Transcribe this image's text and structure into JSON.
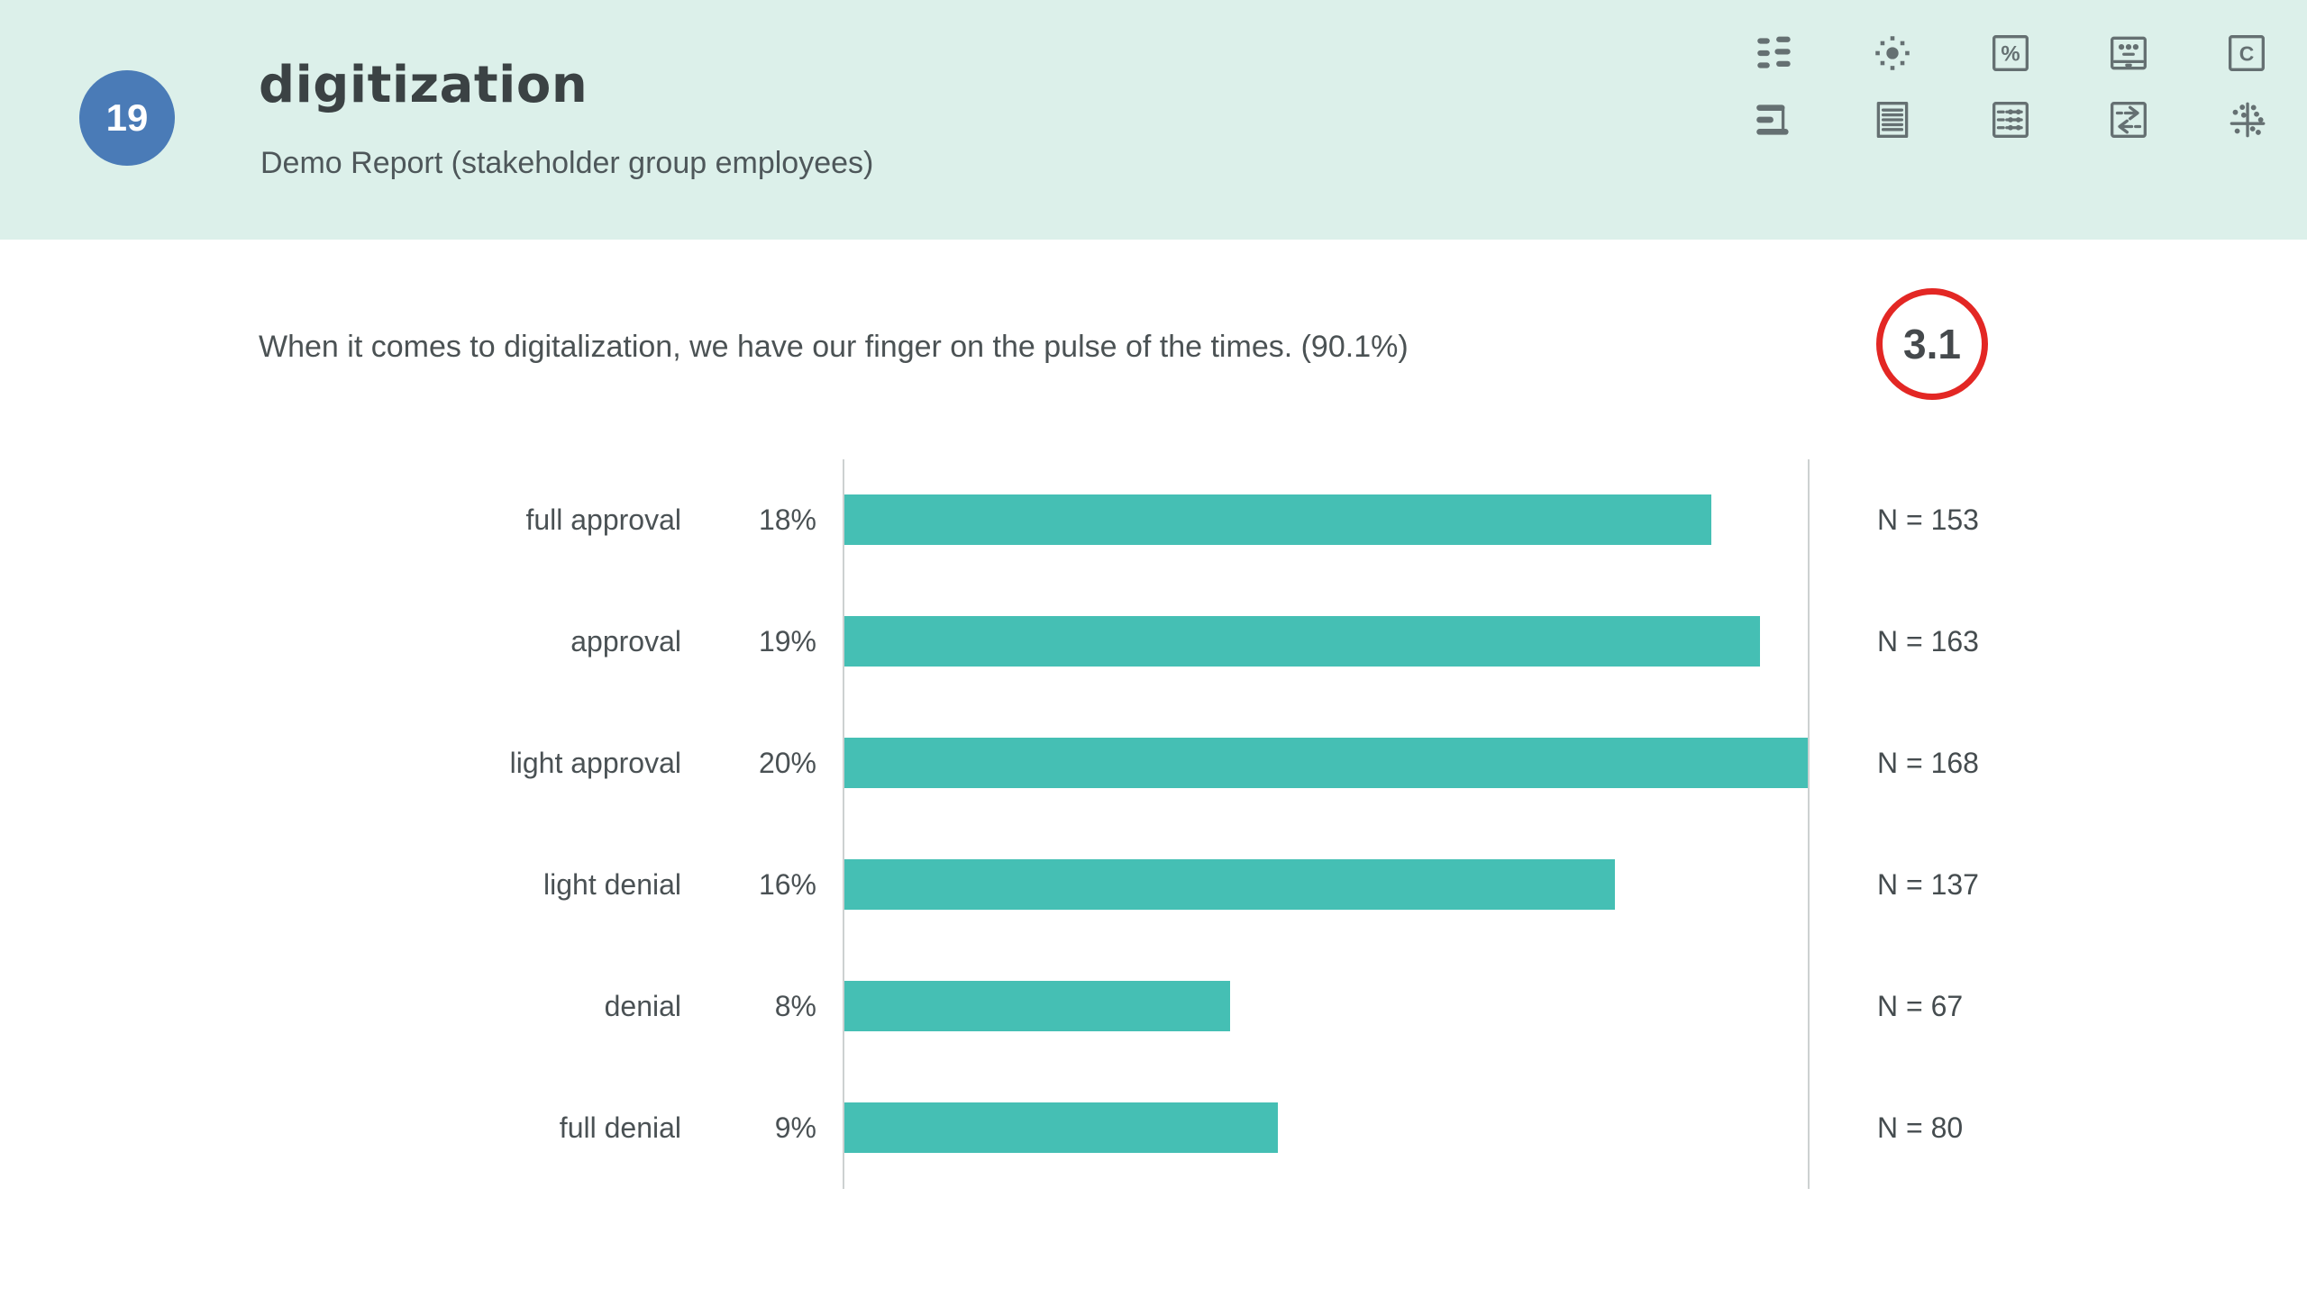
{
  "header": {
    "page_badge": "19",
    "title": "digitization",
    "subtitle": "Demo Report (stakeholder group employees)",
    "toolbar_glyphs": {
      "percent": "%",
      "letter_c": "C"
    },
    "toolbar_icons": [
      "dash-grid",
      "sun",
      "percent-box",
      "presentation",
      "letter-c",
      "horizontal-bar-chart",
      "text-document",
      "matrix-table",
      "swap-arrows",
      "scatter-plot"
    ]
  },
  "question": {
    "text": "When it comes to digitalization, we have our finger on the pulse of the times. (90.1%)",
    "score_badge": "3.1"
  },
  "chart_data": {
    "type": "bar",
    "orientation": "horizontal",
    "title": "",
    "categories": [
      "full approval",
      "approval",
      "light approval",
      "light denial",
      "denial",
      "full denial"
    ],
    "values": [
      18,
      19,
      20,
      16,
      8,
      9
    ],
    "value_labels": [
      "18%",
      "19%",
      "20%",
      "16%",
      "8%",
      "9%"
    ],
    "counts": [
      153,
      163,
      168,
      137,
      67,
      80
    ],
    "count_labels": [
      "N = 153",
      "N = 163",
      "N = 168",
      "N = 137",
      "N = 67",
      "N = 80"
    ],
    "xlim": [
      0,
      20
    ],
    "grid": "off",
    "legend": "none",
    "bar_color": "#45bfb4"
  },
  "colors": {
    "header_bg": "#dcf0ea",
    "badge_blue": "#4a7bb7",
    "bar_teal": "#45bfb4",
    "score_ring_red": "#e32724",
    "axis_gray": "#cdd1d1",
    "text_dark": "#4a5154"
  }
}
